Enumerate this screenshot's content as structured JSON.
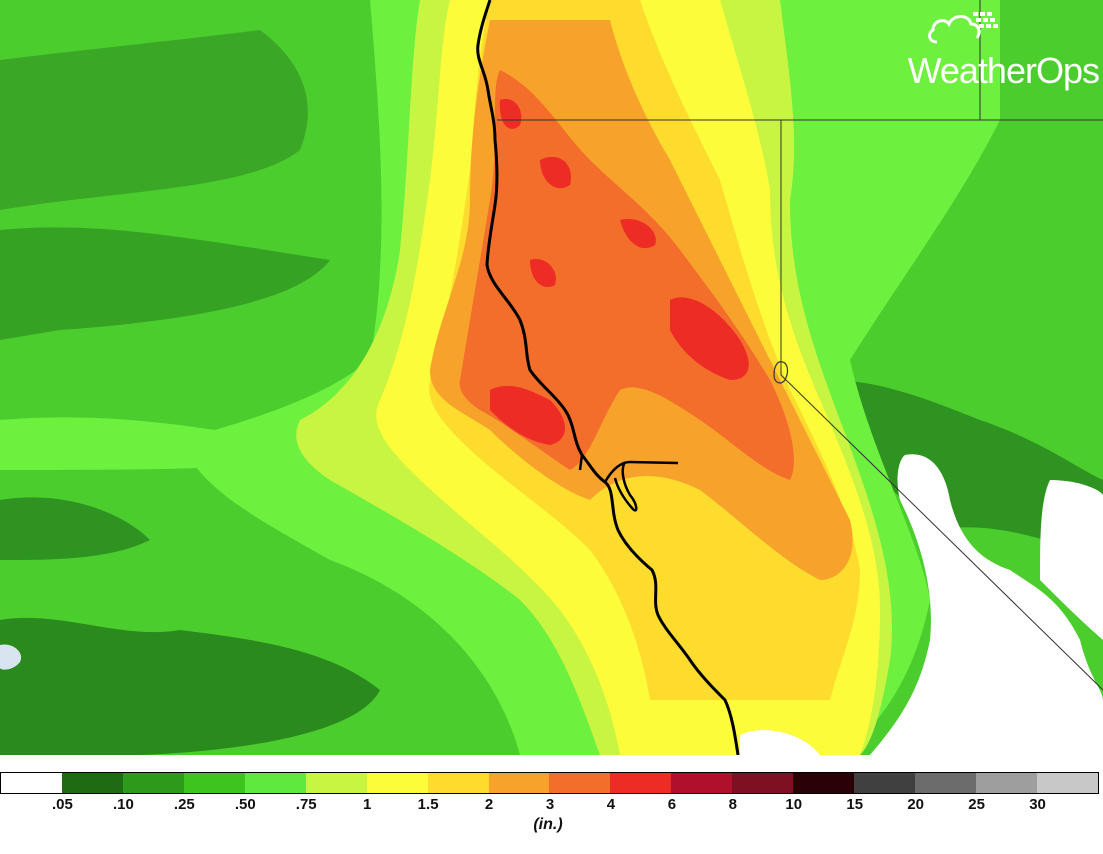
{
  "logo": {
    "text": "WeatherOps",
    "icon": "cloud-satellite-icon"
  },
  "legend": {
    "unit": "(in.)",
    "colors": [
      "#ffffff",
      "#1e6b14",
      "#2e9a1c",
      "#3ec41f",
      "#5fe83d",
      "#c8f542",
      "#fdfc3a",
      "#fddc2e",
      "#f7a22b",
      "#f36d2b",
      "#ee2c26",
      "#b0102c",
      "#7d1123",
      "#2a0205",
      "#404040",
      "#6c6c6c",
      "#9e9e9e",
      "#c8c8c8"
    ],
    "labels": [
      ".05",
      ".10",
      ".25",
      ".50",
      ".75",
      "1",
      "1.5",
      "2",
      "3",
      "4",
      "6",
      "8",
      "10",
      "15",
      "20",
      "25",
      "30"
    ]
  },
  "map_colors": {
    "dark_green": "#2a8a1d",
    "mid_green": "#3fb32a",
    "green": "#4ccd2e",
    "light_green": "#6ef03e",
    "lime": "#c8f542",
    "yellow": "#fdfc3a",
    "gold": "#fddc2e",
    "orange": "#f7a22b",
    "dark_orange": "#f36d2b",
    "red": "#ee2c26"
  }
}
